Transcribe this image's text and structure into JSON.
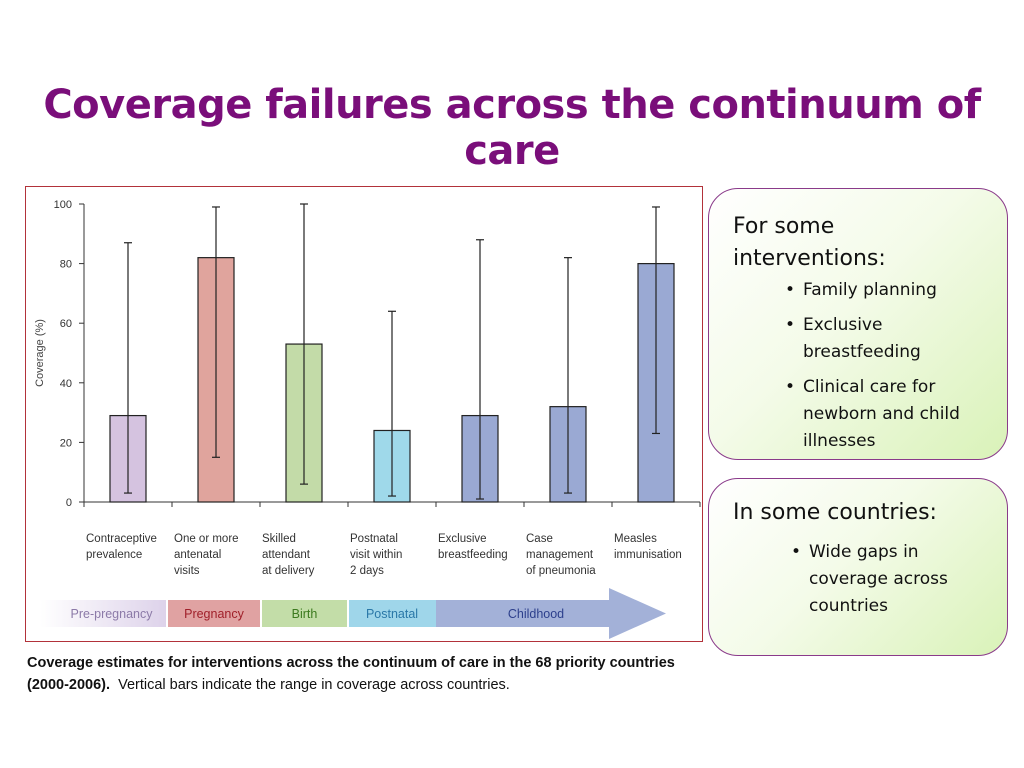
{
  "slide": {
    "title": "Coverage failures across the continuum of care",
    "caption_bold": "Coverage estimates for interventions across the continuum of care in the 68 priority countries (2000-2006).",
    "caption_rest": "Vertical bars indicate the range in coverage across countries."
  },
  "callouts": {
    "box1": {
      "heading": "For some interventions:",
      "items": [
        "Family planning",
        "Exclusive breastfeeding",
        "Clinical care for newborn and child illnesses"
      ]
    },
    "box2": {
      "heading": "In some countries:",
      "items": [
        "Wide gaps in coverage across countries"
      ]
    }
  },
  "chart_data": {
    "type": "bar",
    "ylabel": "Coverage (%)",
    "ylim": [
      0,
      100
    ],
    "yticks": [
      0,
      20,
      40,
      60,
      80,
      100
    ],
    "categories": [
      [
        "Contraceptive",
        "prevalence"
      ],
      [
        "One or more",
        "antenatal",
        "visits"
      ],
      [
        "Skilled",
        "attendant",
        "at delivery"
      ],
      [
        "Postnatal",
        "visit within",
        "2 days"
      ],
      [
        "Exclusive",
        "breastfeeding"
      ],
      [
        "Case",
        "management",
        "of pneumonia"
      ],
      [
        "Measles",
        "immunisation"
      ]
    ],
    "values": [
      29,
      82,
      53,
      24,
      29,
      32,
      80
    ],
    "range_low": [
      3,
      15,
      6,
      2,
      1,
      3,
      23
    ],
    "range_high": [
      87,
      99,
      100,
      64,
      88,
      82,
      99
    ],
    "bar_colors": [
      "#d5c3e0",
      "#e0a49d",
      "#c3dba8",
      "#9fd9ea",
      "#9aa9d3",
      "#9aa9d3",
      "#9aa9d3"
    ],
    "grid": false,
    "stages": [
      {
        "label": "Pre-pregnancy",
        "color": "#e4dced",
        "text_color": "#8c7aa8"
      },
      {
        "label": "Pregnancy",
        "color": "#e0a2a2",
        "text_color": "#a0202a"
      },
      {
        "label": "Birth",
        "color": "#c3dda8",
        "text_color": "#3c7a1e"
      },
      {
        "label": "Postnatal",
        "color": "#9fd6ea",
        "text_color": "#2a78a8"
      },
      {
        "label": "Childhood",
        "color": "#a3b1d8",
        "text_color": "#2c3f8c"
      }
    ]
  }
}
